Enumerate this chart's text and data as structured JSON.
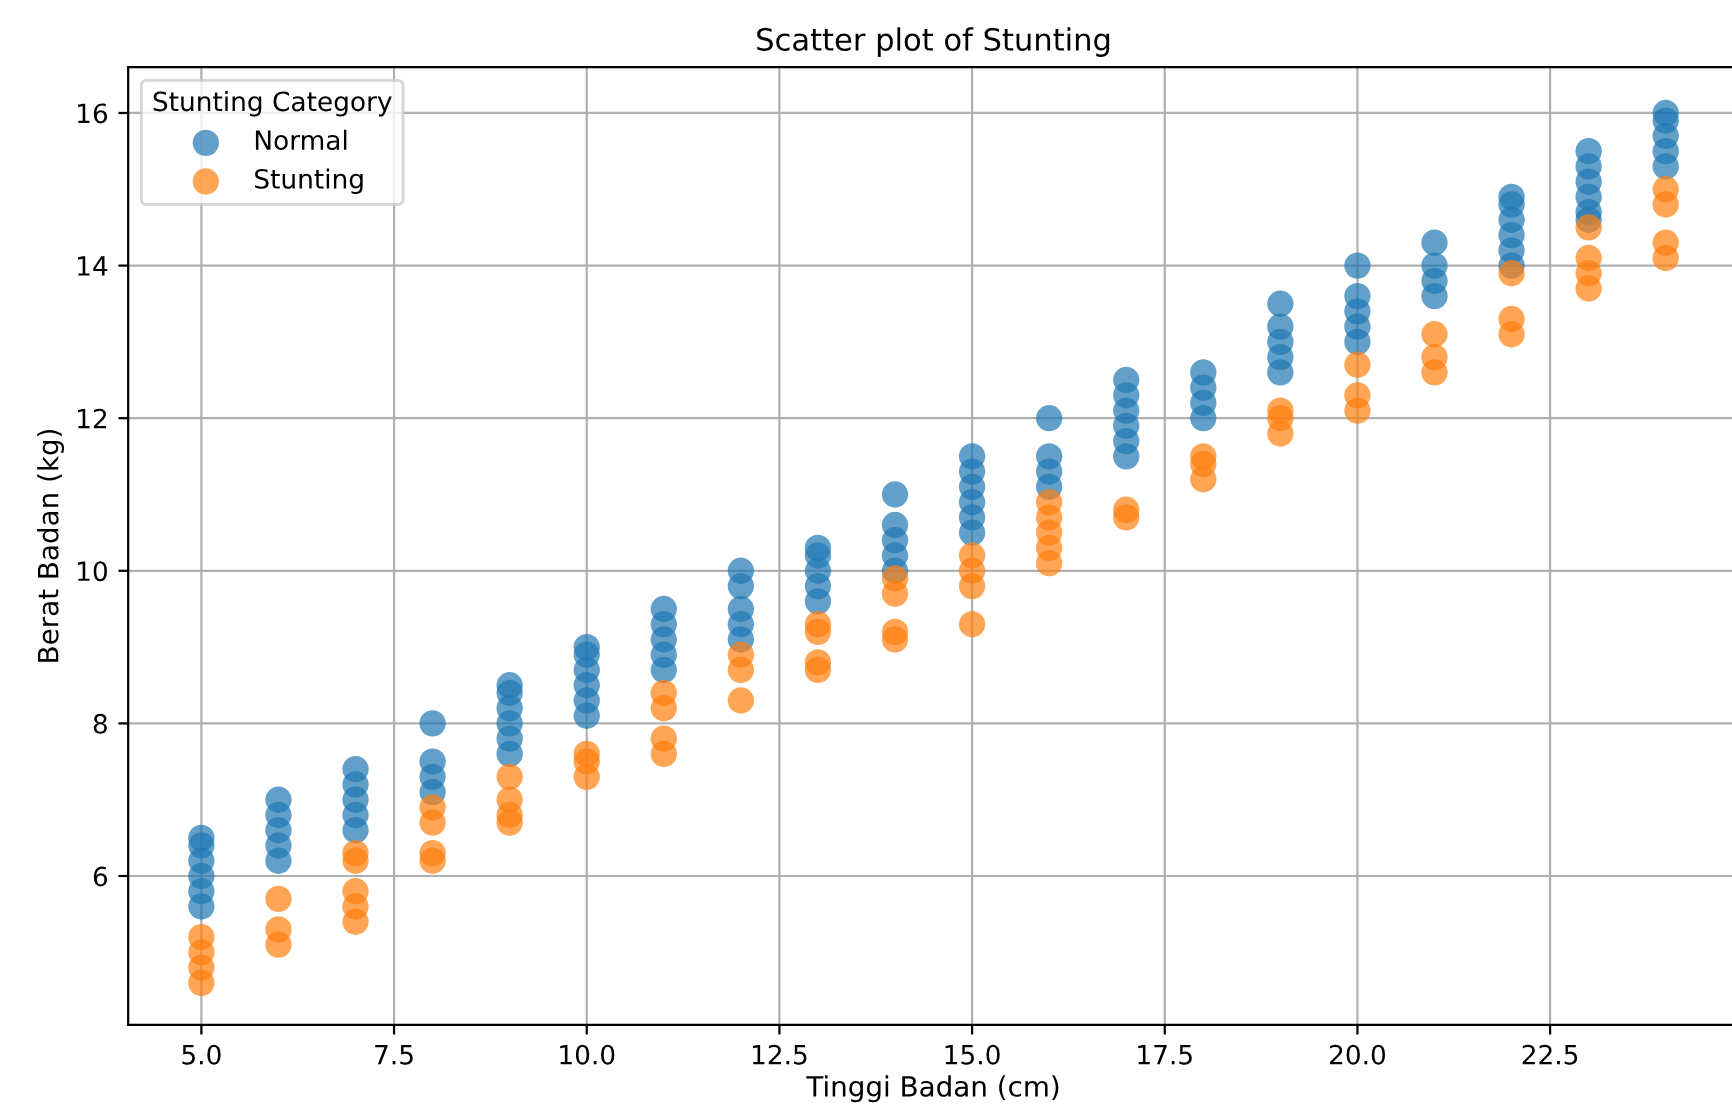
{
  "chart_data": {
    "type": "scatter",
    "title": "Scatter plot of Stunting",
    "xlabel": "Tinggi Badan (cm)",
    "ylabel": "Berat Badan (kg)",
    "legend_title": "Stunting Category",
    "legend": "top left",
    "grid": true,
    "marker": "circle",
    "xlim": [
      4.05,
      24.95
    ],
    "ylim": [
      4.05,
      16.6
    ],
    "xticks": [
      {
        "value": 5,
        "label": "5.0"
      },
      {
        "value": 7.5,
        "label": "7.5"
      },
      {
        "value": 10,
        "label": "10.0"
      },
      {
        "value": 12.5,
        "label": "12.5"
      },
      {
        "value": 15,
        "label": "15.0"
      },
      {
        "value": 17.5,
        "label": "17.5"
      },
      {
        "value": 20,
        "label": "20.0"
      },
      {
        "value": 22.5,
        "label": "22.5"
      }
    ],
    "yticks": [
      6,
      8,
      10,
      12,
      14,
      16
    ],
    "series": [
      {
        "name": "Normal",
        "color": "#1f77b4",
        "x": [
          5,
          5,
          5,
          5,
          5,
          5,
          6,
          6,
          6,
          6,
          6,
          7,
          7,
          7,
          7,
          7,
          8,
          8,
          8,
          8,
          9,
          9,
          9,
          9,
          9,
          9,
          10,
          10,
          10,
          10,
          10,
          10,
          11,
          11,
          11,
          11,
          11,
          12,
          12,
          12,
          12,
          12,
          13,
          13,
          13,
          13,
          13,
          14,
          14,
          14,
          14,
          14,
          15,
          15,
          15,
          15,
          15,
          15,
          16,
          16,
          16,
          16,
          17,
          17,
          17,
          17,
          17,
          17,
          18,
          18,
          18,
          18,
          19,
          19,
          19,
          19,
          19,
          20,
          20,
          20,
          20,
          20,
          21,
          21,
          21,
          21,
          22,
          22,
          22,
          22,
          22,
          22,
          23,
          23,
          23,
          23,
          23,
          23,
          24,
          24,
          24,
          24,
          24
        ],
        "values": [
          5.6,
          5.8,
          6.0,
          6.2,
          6.4,
          6.5,
          6.2,
          6.4,
          6.6,
          6.8,
          7.0,
          6.6,
          6.8,
          7.0,
          7.2,
          7.4,
          7.1,
          7.3,
          7.5,
          8.0,
          7.6,
          7.8,
          8.0,
          8.2,
          8.4,
          8.5,
          8.1,
          8.3,
          8.5,
          8.7,
          8.9,
          9.0,
          8.7,
          8.9,
          9.1,
          9.3,
          9.5,
          9.1,
          9.3,
          9.5,
          9.8,
          10.0,
          9.6,
          9.8,
          10.0,
          10.2,
          10.3,
          10.0,
          10.2,
          10.4,
          10.6,
          11.0,
          10.5,
          10.7,
          10.9,
          11.1,
          11.3,
          11.5,
          11.1,
          11.3,
          11.5,
          12.0,
          11.5,
          11.7,
          11.9,
          12.1,
          12.3,
          12.5,
          12.0,
          12.2,
          12.4,
          12.6,
          12.6,
          12.8,
          13.0,
          13.2,
          13.5,
          13.0,
          13.2,
          13.4,
          13.6,
          14.0,
          13.6,
          13.8,
          14.0,
          14.3,
          14.0,
          14.2,
          14.4,
          14.6,
          14.8,
          14.9,
          14.6,
          14.7,
          14.9,
          15.1,
          15.3,
          15.5,
          15.3,
          15.5,
          15.7,
          15.9,
          16.0
        ]
      },
      {
        "name": "Stunting",
        "color": "#ff7f0e",
        "x": [
          5,
          5,
          5,
          5,
          6,
          6,
          6,
          7,
          7,
          7,
          7,
          7,
          8,
          8,
          8,
          8,
          9,
          9,
          9,
          9,
          10,
          10,
          10,
          11,
          11,
          11,
          11,
          12,
          12,
          12,
          13,
          13,
          13,
          13,
          14,
          14,
          14,
          14,
          15,
          15,
          15,
          15,
          16,
          16,
          16,
          16,
          16,
          17,
          17,
          18,
          18,
          18,
          19,
          19,
          19,
          20,
          20,
          20,
          21,
          21,
          21,
          22,
          22,
          22,
          23,
          23,
          23,
          23,
          24,
          24,
          24,
          24
        ],
        "values": [
          4.6,
          4.8,
          5.0,
          5.2,
          5.1,
          5.3,
          5.7,
          5.4,
          5.6,
          5.8,
          6.2,
          6.3,
          6.2,
          6.3,
          6.7,
          6.9,
          6.7,
          6.8,
          7.0,
          7.3,
          7.3,
          7.5,
          7.6,
          7.6,
          7.8,
          8.2,
          8.4,
          8.3,
          8.7,
          8.9,
          8.7,
          8.8,
          9.2,
          9.3,
          9.1,
          9.2,
          9.7,
          9.9,
          9.3,
          9.8,
          10.0,
          10.2,
          10.1,
          10.3,
          10.5,
          10.7,
          10.9,
          10.7,
          10.8,
          11.2,
          11.4,
          11.5,
          11.8,
          12.0,
          12.1,
          12.1,
          12.3,
          12.7,
          12.6,
          12.8,
          13.1,
          13.1,
          13.3,
          13.9,
          13.7,
          13.9,
          14.1,
          14.5,
          14.1,
          14.3,
          14.8,
          15.0
        ]
      }
    ]
  }
}
